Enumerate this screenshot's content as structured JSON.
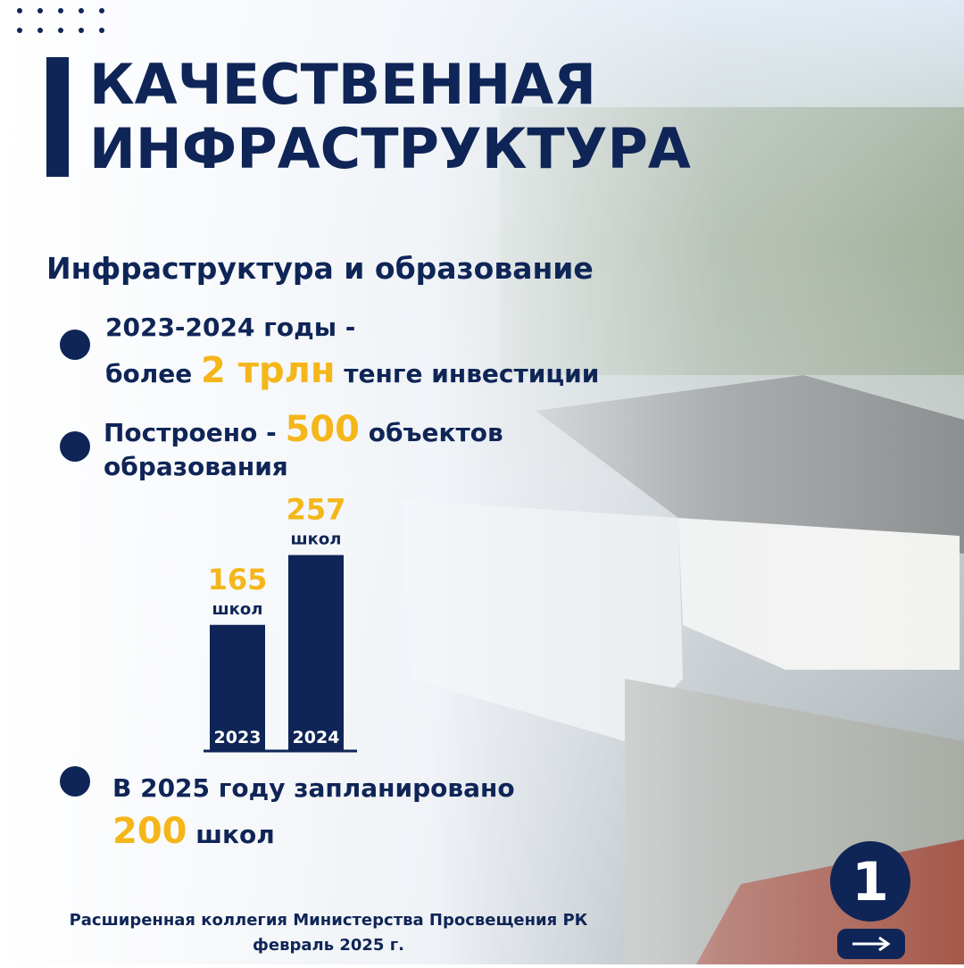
{
  "header": {
    "title": [
      "КАЧЕСТВЕННАЯ",
      "ИНФРАСТРУКТУРА"
    ],
    "subtitle": "Инфраструктура и образование"
  },
  "bullets": [
    {
      "line1": "2023-2024 годы -",
      "prefix": "более",
      "highlight": "2 трлн",
      "suffix": "тенге инвестиции"
    },
    {
      "prefix": "Построено -",
      "highlight": "500",
      "suffix": "объектов",
      "line2": "образования"
    },
    {
      "line1": "В 2025 году запланировано",
      "highlight": "200",
      "suffix": "школ"
    }
  ],
  "chart": {
    "type": "bar",
    "categories": [
      "2023",
      "2024"
    ],
    "values": [
      165,
      257
    ],
    "unit": "школ",
    "color": "#0f2557"
  },
  "page_number": "1",
  "footer": [
    "Расширенная коллегия Министерства Просвещения РК",
    "февраль 2025 г."
  ]
}
